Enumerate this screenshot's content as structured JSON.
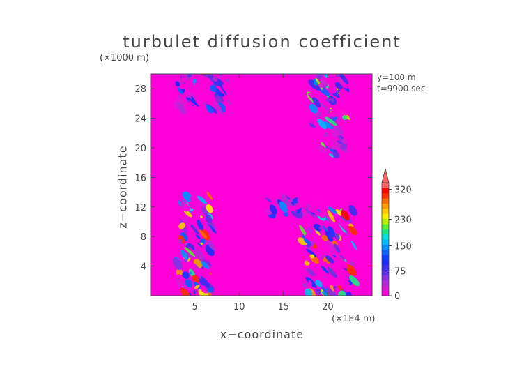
{
  "chart_data": {
    "type": "heatmap",
    "title": "turbulet diffusion coefficient",
    "xlabel": "x−coordinate",
    "ylabel": "z−coordinate",
    "x_unit": "(×1E4 m)",
    "y_unit": "(×1000 m)",
    "annotations": [
      "y=100  m",
      "t=9900 sec"
    ],
    "xlim": [
      0,
      25
    ],
    "ylim": [
      0,
      30
    ],
    "x_ticks": [
      5,
      10,
      15,
      20
    ],
    "y_ticks": [
      4,
      8,
      12,
      16,
      20,
      24,
      28
    ],
    "colorbar": {
      "range": [
        0,
        340
      ],
      "tick_values": [
        0,
        75,
        150,
        230,
        320
      ],
      "tick_labels": [
        "0",
        "75",
        "150",
        "230",
        "320"
      ],
      "colors": [
        "#ff00d8",
        "#dc18d8",
        "#b428d8",
        "#8c2ee0",
        "#6030e8",
        "#3a2ef0",
        "#1c2cf8",
        "#103cff",
        "#1060ff",
        "#0090ff",
        "#00b8ff",
        "#00dcd8",
        "#18e880",
        "#58ec30",
        "#b8ec00",
        "#ffec00",
        "#ffc800",
        "#ff9c00",
        "#ff6a00",
        "#ff3000",
        "#ff0000",
        "#ff6464"
      ]
    },
    "background_value": 0,
    "features": [
      {
        "region": "left plume",
        "x_range": [
          3,
          7
        ],
        "z_range": [
          0,
          14
        ],
        "peak": 320
      },
      {
        "region": "right plume",
        "x_range": [
          17,
          23
        ],
        "z_range": [
          0,
          12
        ],
        "peak": 320
      },
      {
        "region": "arc band",
        "x_range": [
          13,
          19
        ],
        "z_range": [
          11,
          13
        ],
        "peak": 150
      },
      {
        "region": "upper-left patches",
        "x_range": [
          3,
          9
        ],
        "z_range": [
          25,
          30
        ],
        "peak": 150
      },
      {
        "region": "upper-right patches",
        "x_range": [
          18,
          22
        ],
        "z_range": [
          19,
          30
        ],
        "peak": 230
      }
    ]
  }
}
